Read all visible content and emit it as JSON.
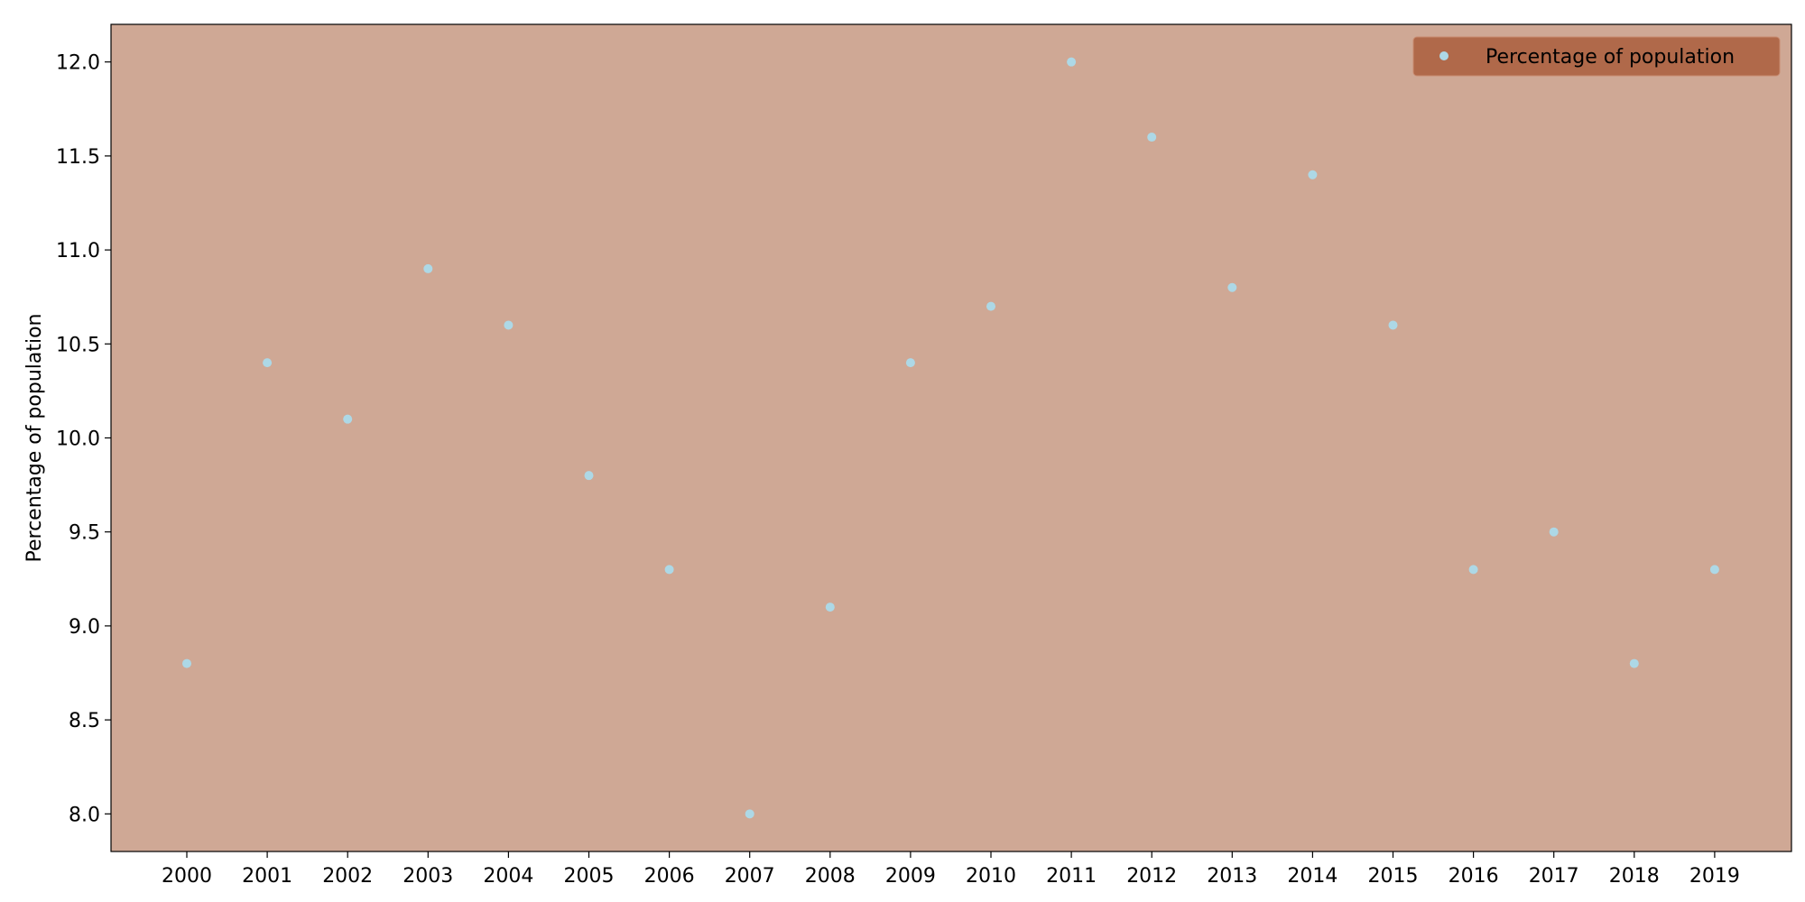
{
  "chart_data": {
    "type": "scatter",
    "title": "",
    "xlabel": "",
    "ylabel": "Percentage of population",
    "x": [
      "2000",
      "2001",
      "2002",
      "2003",
      "2004",
      "2005",
      "2006",
      "2007",
      "2008",
      "2009",
      "2010",
      "2011",
      "2012",
      "2013",
      "2014",
      "2015",
      "2016",
      "2017",
      "2018",
      "2019"
    ],
    "series": [
      {
        "name": "Percentage of population",
        "values": [
          8.8,
          10.4,
          10.1,
          10.9,
          10.6,
          9.8,
          9.3,
          8.0,
          9.1,
          10.4,
          10.7,
          12.0,
          11.6,
          10.8,
          11.4,
          10.6,
          9.3,
          9.5,
          8.8,
          9.3
        ]
      }
    ],
    "ylim": [
      7.8,
      12.2
    ],
    "yticks": [
      "8.0",
      "8.5",
      "9.0",
      "9.5",
      "10.0",
      "10.5",
      "11.0",
      "11.5",
      "12.0"
    ],
    "grid": false,
    "legend_position": "top-right",
    "colors": {
      "plot_background": "#cfa895",
      "marker": "#add8e6",
      "legend_background": "#b0694a",
      "axis": "#000000"
    }
  }
}
